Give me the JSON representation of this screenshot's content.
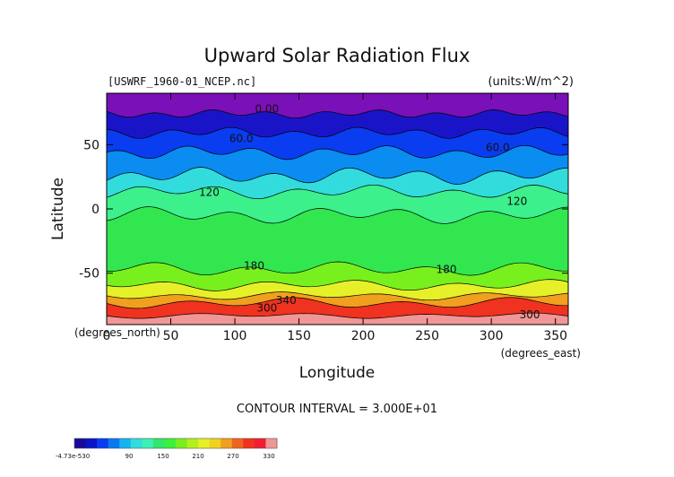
{
  "chart_data": {
    "type": "heatmap",
    "title": "Upward Solar Radiation Flux",
    "file_label": "[USWRF_1960-01_NCEP.nc]",
    "units_label": "(units:W/m^2)",
    "xlabel": "Longitude",
    "xunits": "(degrees_east)",
    "ylabel": "Latitude",
    "yunits": "(degrees_north)",
    "xlim": [
      0,
      360
    ],
    "ylim": [
      -90,
      90
    ],
    "xticks": [
      0,
      50,
      100,
      150,
      200,
      250,
      300,
      350
    ],
    "yticks": [
      50,
      0,
      -50
    ],
    "contour_interval_label": "CONTOUR INTERVAL = 3.000E+01",
    "contour_labels": [
      {
        "text": "0.00",
        "x": 125,
        "y": 75
      },
      {
        "text": "60.0",
        "x": 105,
        "y": 52
      },
      {
        "text": "60.0",
        "x": 305,
        "y": 45
      },
      {
        "text": "120",
        "x": 80,
        "y": 10
      },
      {
        "text": "120",
        "x": 320,
        "y": 3
      },
      {
        "text": "180",
        "x": 115,
        "y": -47
      },
      {
        "text": "180",
        "x": 265,
        "y": -50
      },
      {
        "text": "340",
        "x": 140,
        "y": -74
      },
      {
        "text": "300",
        "x": 125,
        "y": -80
      },
      {
        "text": "300",
        "x": 330,
        "y": -85
      }
    ],
    "colorbar": {
      "tick_labels": [
        "-4.73e-530",
        "90",
        "150",
        "210",
        "270",
        "330"
      ],
      "colors": [
        "#1a0a9a",
        "#0a14c8",
        "#0a3cf0",
        "#0a78f0",
        "#14b4f0",
        "#32dcdc",
        "#3cf0b4",
        "#32e66e",
        "#3cf03c",
        "#78f01e",
        "#b4f01e",
        "#e6f028",
        "#f0d21e",
        "#f0a01e",
        "#f0641e",
        "#f0321e",
        "#f01e32",
        "#f09696"
      ]
    }
  }
}
